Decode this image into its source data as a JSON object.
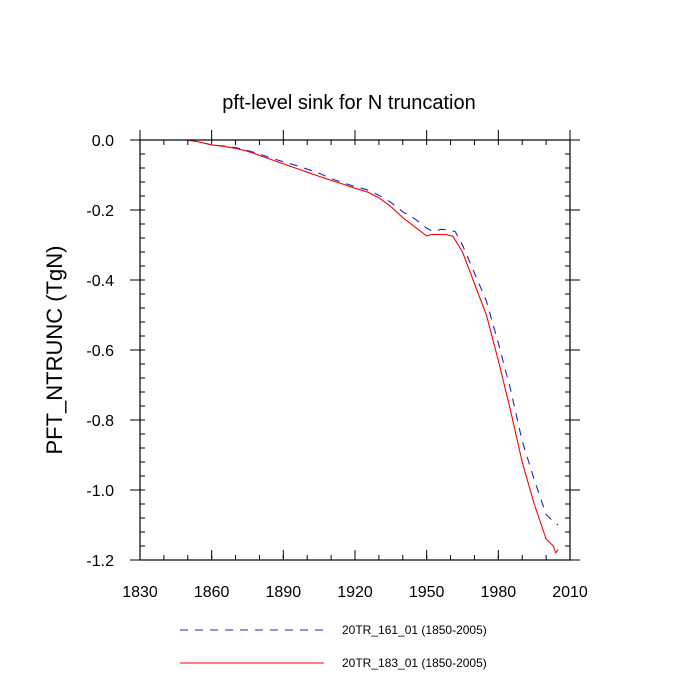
{
  "chart_data": {
    "type": "line",
    "title": "pft-level sink for N truncation",
    "xlabel": "",
    "ylabel": "PFT_NTRUNC  (TgN)",
    "xlim": [
      1830,
      2010
    ],
    "ylim": [
      -1.2,
      0.0
    ],
    "x_ticks": [
      1830,
      1860,
      1890,
      1920,
      1950,
      1980,
      2010
    ],
    "x_tick_labels": [
      "1830",
      "1860",
      "1890",
      "1920",
      "1950",
      "1980",
      "2010"
    ],
    "y_ticks": [
      0.0,
      -0.2,
      -0.4,
      -0.6,
      -0.8,
      -1.0,
      -1.2
    ],
    "y_tick_labels": [
      "0.0",
      "-0.2",
      "-0.4",
      "-0.6",
      "-0.8",
      "-1.0",
      "-1.2"
    ],
    "x_minor_step": 10,
    "y_minor_step": 0.04,
    "grid": false,
    "legend_position": "bottom",
    "series": [
      {
        "name": "20TR_161_01 (1850-2005)",
        "color": "#2222cc",
        "dash": true,
        "x": [
          1850,
          1855,
          1860,
          1865,
          1870,
          1875,
          1880,
          1885,
          1890,
          1895,
          1900,
          1905,
          1910,
          1915,
          1920,
          1925,
          1930,
          1935,
          1940,
          1945,
          1950,
          1953,
          1956,
          1959,
          1962,
          1965,
          1970,
          1975,
          1980,
          1985,
          1990,
          1995,
          2000,
          2003,
          2005
        ],
        "y": [
          0.0,
          -0.006,
          -0.014,
          -0.017,
          -0.022,
          -0.03,
          -0.04,
          -0.052,
          -0.062,
          -0.072,
          -0.083,
          -0.095,
          -0.11,
          -0.122,
          -0.133,
          -0.142,
          -0.158,
          -0.178,
          -0.205,
          -0.225,
          -0.252,
          -0.262,
          -0.255,
          -0.257,
          -0.262,
          -0.3,
          -0.38,
          -0.46,
          -0.58,
          -0.71,
          -0.86,
          -0.97,
          -1.07,
          -1.09,
          -1.1
        ]
      },
      {
        "name": "20TR_183_01 (1850-2005)",
        "color": "#ff0000",
        "dash": false,
        "x": [
          1850,
          1855,
          1860,
          1865,
          1870,
          1875,
          1880,
          1885,
          1890,
          1895,
          1900,
          1905,
          1910,
          1915,
          1920,
          1925,
          1930,
          1935,
          1940,
          1945,
          1950,
          1952,
          1955,
          1958,
          1961,
          1965,
          1970,
          1975,
          1980,
          1985,
          1990,
          1995,
          2000,
          2003,
          2004,
          2005
        ],
        "y": [
          0.0,
          -0.006,
          -0.014,
          -0.018,
          -0.024,
          -0.032,
          -0.044,
          -0.056,
          -0.068,
          -0.08,
          -0.092,
          -0.104,
          -0.115,
          -0.126,
          -0.138,
          -0.148,
          -0.165,
          -0.19,
          -0.222,
          -0.248,
          -0.274,
          -0.27,
          -0.27,
          -0.27,
          -0.275,
          -0.32,
          -0.41,
          -0.5,
          -0.63,
          -0.77,
          -0.92,
          -1.04,
          -1.14,
          -1.16,
          -1.18,
          -1.17
        ]
      }
    ]
  }
}
